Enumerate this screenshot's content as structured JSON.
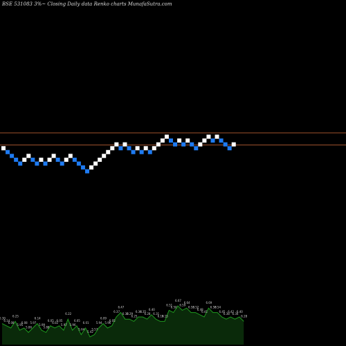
{
  "header": {
    "title": "BSE 531083 3%~  Closing Daily data  Renko  charts MunafaSutra.com"
  },
  "colors": {
    "background": "#000000",
    "up_brick": "#ffffff",
    "down_brick": "#1e7bf2",
    "resistance_line": "#a0522d",
    "volume_fill": "#0a2a0a",
    "volume_line": "#1f9a1f"
  },
  "chart_data": {
    "type": "renko",
    "bricks": [
      {
        "dir": "up",
        "value": 6.52
      },
      {
        "dir": "down",
        "value": 6.33
      },
      {
        "dir": "down",
        "value": 6.14
      },
      {
        "dir": "down",
        "value": 5.95
      },
      {
        "dir": "down",
        "value": 5.76
      },
      {
        "dir": "up",
        "value": 5.95
      },
      {
        "dir": "up",
        "value": 6.14
      },
      {
        "dir": "down",
        "value": 5.95
      },
      {
        "dir": "down",
        "value": 5.76
      },
      {
        "dir": "up",
        "value": 5.95
      },
      {
        "dir": "down",
        "value": 5.76
      },
      {
        "dir": "up",
        "value": 5.95
      },
      {
        "dir": "up",
        "value": 6.14
      },
      {
        "dir": "down",
        "value": 5.95
      },
      {
        "dir": "down",
        "value": 5.76
      },
      {
        "dir": "up",
        "value": 5.95
      },
      {
        "dir": "up",
        "value": 6.14
      },
      {
        "dir": "down",
        "value": 5.95
      },
      {
        "dir": "down",
        "value": 5.76
      },
      {
        "dir": "down",
        "value": 5.57
      },
      {
        "dir": "down",
        "value": 5.38
      },
      {
        "dir": "up",
        "value": 5.57
      },
      {
        "dir": "up",
        "value": 5.76
      },
      {
        "dir": "up",
        "value": 5.95
      },
      {
        "dir": "up",
        "value": 6.14
      },
      {
        "dir": "up",
        "value": 6.33
      },
      {
        "dir": "up",
        "value": 6.52
      },
      {
        "dir": "up",
        "value": 6.71
      },
      {
        "dir": "down",
        "value": 6.52
      },
      {
        "dir": "up",
        "value": 6.71
      },
      {
        "dir": "down",
        "value": 6.52
      },
      {
        "dir": "down",
        "value": 6.33
      },
      {
        "dir": "up",
        "value": 6.52
      },
      {
        "dir": "down",
        "value": 6.33
      },
      {
        "dir": "up",
        "value": 6.52
      },
      {
        "dir": "down",
        "value": 6.33
      },
      {
        "dir": "up",
        "value": 6.52
      },
      {
        "dir": "up",
        "value": 6.71
      },
      {
        "dir": "up",
        "value": 6.9
      },
      {
        "dir": "up",
        "value": 7.09
      },
      {
        "dir": "down",
        "value": 6.9
      },
      {
        "dir": "down",
        "value": 6.71
      },
      {
        "dir": "up",
        "value": 6.9
      },
      {
        "dir": "down",
        "value": 6.71
      },
      {
        "dir": "up",
        "value": 6.9
      },
      {
        "dir": "down",
        "value": 6.71
      },
      {
        "dir": "down",
        "value": 6.52
      },
      {
        "dir": "up",
        "value": 6.71
      },
      {
        "dir": "up",
        "value": 6.9
      },
      {
        "dir": "up",
        "value": 7.09
      },
      {
        "dir": "down",
        "value": 6.9
      },
      {
        "dir": "up",
        "value": 7.09
      },
      {
        "dir": "down",
        "value": 6.9
      },
      {
        "dir": "down",
        "value": 6.71
      },
      {
        "dir": "down",
        "value": 6.52
      },
      {
        "dir": "up",
        "value": 6.71
      }
    ],
    "resistance_levels": [
      7.28,
      6.68
    ],
    "volume_labels": [
      "6.30",
      "6.14",
      "6.08",
      "6.25",
      "5.95",
      "6.08",
      "5.86",
      "5.97",
      "6.14",
      "5.99",
      "5.88",
      "6.05",
      "6.02",
      "6.05",
      "5.97",
      "6.22",
      "5.96",
      "6.05",
      "5.64",
      "6.01",
      "5.42",
      "5.57",
      "5.94",
      "6.09",
      "5.96",
      "6.05",
      "6.37",
      "6.47",
      "6.32",
      "6.29",
      "6.25",
      "6.34",
      "6.35",
      "6.28",
      "6.40",
      "6.31",
      "6.19",
      "6.15",
      "6.51",
      "6.50",
      "6.67",
      "6.59",
      "6.64",
      "6.53",
      "6.52",
      "6.48",
      "6.41",
      "6.69",
      "6.58",
      "6.54",
      "6.45",
      "6.38",
      "6.42",
      "6.34",
      "6.40",
      "6.28"
    ],
    "volume_values": [
      7,
      6,
      5,
      8,
      4,
      5,
      3,
      5,
      7,
      4,
      3,
      6,
      5,
      6,
      4,
      9,
      4,
      6,
      2,
      5,
      1,
      2,
      5,
      7,
      5,
      6,
      10,
      12,
      9,
      9,
      8,
      10,
      10,
      9,
      11,
      9,
      8,
      8,
      13,
      12,
      15,
      13,
      14,
      12,
      12,
      11,
      10,
      14,
      12,
      12,
      10,
      9,
      10,
      9,
      10,
      8
    ]
  }
}
